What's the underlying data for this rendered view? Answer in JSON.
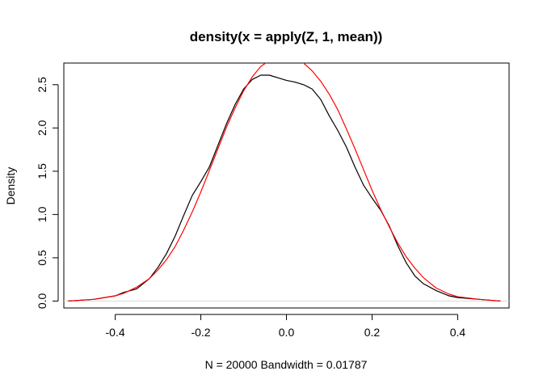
{
  "chart_data": {
    "type": "line",
    "title": "density(x = apply(Z, 1, mean))",
    "xlabel": "N = 20000   Bandwidth = 0.01787",
    "ylabel": "Density",
    "xlim": [
      -0.52,
      0.52
    ],
    "ylim": [
      -0.08,
      2.75
    ],
    "xticks": [
      -0.4,
      -0.2,
      0.0,
      0.2,
      0.4
    ],
    "xtick_labels": [
      "-0.4",
      "-0.2",
      "0.0",
      "0.2",
      "0.4"
    ],
    "yticks": [
      0.0,
      0.5,
      1.0,
      1.5,
      2.0,
      2.5
    ],
    "ytick_labels": [
      "0.0",
      "0.5",
      "1.0",
      "1.5",
      "2.0",
      "2.5"
    ],
    "baseline": 0,
    "grid": false,
    "series": [
      {
        "color": "#000000",
        "x": [
          -0.51,
          -0.45,
          -0.4,
          -0.38,
          -0.35,
          -0.32,
          -0.3,
          -0.28,
          -0.26,
          -0.24,
          -0.22,
          -0.2,
          -0.18,
          -0.16,
          -0.14,
          -0.12,
          -0.1,
          -0.08,
          -0.06,
          -0.04,
          -0.02,
          0.0,
          0.02,
          0.04,
          0.06,
          0.08,
          0.1,
          0.12,
          0.14,
          0.16,
          0.18,
          0.2,
          0.22,
          0.24,
          0.26,
          0.28,
          0.3,
          0.32,
          0.35,
          0.38,
          0.4,
          0.45,
          0.5
        ],
        "y": [
          0.0,
          0.02,
          0.06,
          0.1,
          0.14,
          0.26,
          0.39,
          0.55,
          0.75,
          0.99,
          1.22,
          1.38,
          1.55,
          1.8,
          2.05,
          2.27,
          2.45,
          2.56,
          2.61,
          2.61,
          2.58,
          2.55,
          2.53,
          2.5,
          2.45,
          2.33,
          2.14,
          1.97,
          1.78,
          1.55,
          1.34,
          1.19,
          1.05,
          0.87,
          0.64,
          0.44,
          0.29,
          0.2,
          0.12,
          0.06,
          0.04,
          0.02,
          0.0
        ]
      },
      {
        "color": "#ff0000",
        "x": [
          -0.51,
          -0.45,
          -0.4,
          -0.38,
          -0.35,
          -0.32,
          -0.3,
          -0.28,
          -0.26,
          -0.24,
          -0.22,
          -0.2,
          -0.18,
          -0.16,
          -0.14,
          -0.12,
          -0.1,
          -0.08,
          -0.06,
          -0.04,
          -0.02,
          0.0,
          0.02,
          0.04,
          0.06,
          0.08,
          0.1,
          0.12,
          0.14,
          0.16,
          0.18,
          0.2,
          0.22,
          0.24,
          0.26,
          0.28,
          0.3,
          0.32,
          0.35,
          0.38,
          0.4,
          0.45,
          0.5
        ],
        "y": [
          0.0,
          0.02,
          0.06,
          0.09,
          0.16,
          0.26,
          0.36,
          0.48,
          0.63,
          0.82,
          1.03,
          1.26,
          1.51,
          1.76,
          2.01,
          2.23,
          2.43,
          2.59,
          2.71,
          2.78,
          2.82,
          2.82,
          2.8,
          2.75,
          2.66,
          2.54,
          2.39,
          2.21,
          1.99,
          1.76,
          1.52,
          1.28,
          1.06,
          0.86,
          0.67,
          0.51,
          0.38,
          0.27,
          0.15,
          0.08,
          0.05,
          0.02,
          0.0
        ]
      }
    ]
  }
}
